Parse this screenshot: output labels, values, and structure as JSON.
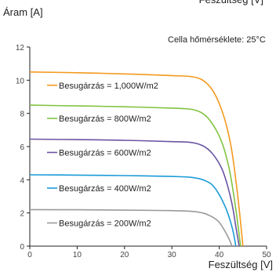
{
  "chart_data": {
    "type": "line",
    "xlabel": "Feszültség [V]",
    "ylabel": "Áram [A]",
    "annotation": "Cella hőmérséklete: 25°C",
    "xlim": [
      0,
      50
    ],
    "ylim": [
      0,
      12
    ],
    "x_ticks": [
      0,
      10,
      20,
      30,
      40,
      50
    ],
    "y_ticks": [
      0,
      2,
      4,
      6,
      8,
      10,
      12
    ],
    "grid": false,
    "legend_placement": "inline-left",
    "series": [
      {
        "name": "Besugárzás = 1,000W/m2",
        "color": "#f39a1e",
        "x": [
          0,
          10,
          20,
          30,
          34.5,
          37,
          39,
          41,
          42.5,
          43.5,
          44.3,
          45
        ],
        "y": [
          10.5,
          10.45,
          10.38,
          10.28,
          10.2,
          9.9,
          9.2,
          7.8,
          6.0,
          4.0,
          2.0,
          0
        ]
      },
      {
        "name": "Besugárzás = 800W/m2",
        "color": "#82c341",
        "x": [
          0,
          10,
          20,
          30,
          34,
          36.5,
          38.5,
          40.5,
          42,
          43,
          43.8,
          44.5
        ],
        "y": [
          8.5,
          8.45,
          8.4,
          8.32,
          8.25,
          8.0,
          7.4,
          6.3,
          4.8,
          3.2,
          1.6,
          0
        ]
      },
      {
        "name": "Besugárzás = 600W/m2",
        "color": "#6a55a3",
        "x": [
          0,
          10,
          20,
          30,
          34,
          36.5,
          38.5,
          40.5,
          41.8,
          42.8,
          43.5,
          44.2
        ],
        "y": [
          6.45,
          6.42,
          6.38,
          6.3,
          6.25,
          6.05,
          5.6,
          4.7,
          3.6,
          2.4,
          1.2,
          0
        ]
      },
      {
        "name": "Besugárzás = 400W/m2",
        "color": "#1a9bd7",
        "x": [
          0,
          10,
          20,
          30,
          34,
          36.5,
          38.5,
          40,
          41.3,
          42.3,
          43,
          43.5
        ],
        "y": [
          4.3,
          4.28,
          4.25,
          4.2,
          4.15,
          4.0,
          3.7,
          3.1,
          2.35,
          1.55,
          0.8,
          0
        ]
      },
      {
        "name": "Besugárzás = 200W/m2",
        "color": "#9a9a9a",
        "x": [
          0,
          10,
          20,
          30,
          34,
          36.5,
          38.3,
          39.8,
          40.8,
          41.6,
          42.2,
          42.7
        ],
        "y": [
          2.2,
          2.19,
          2.17,
          2.14,
          2.1,
          2.0,
          1.8,
          1.5,
          1.1,
          0.7,
          0.35,
          0
        ]
      }
    ]
  }
}
